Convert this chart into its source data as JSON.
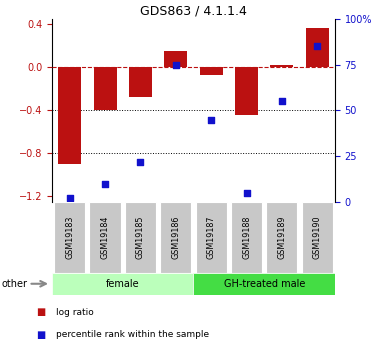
{
  "title": "GDS863 / 4.1.1.4",
  "samples": [
    "GSM19183",
    "GSM19184",
    "GSM19185",
    "GSM19186",
    "GSM19187",
    "GSM19188",
    "GSM19189",
    "GSM19190"
  ],
  "log_ratio": [
    -0.9,
    -0.4,
    -0.28,
    0.15,
    -0.07,
    -0.44,
    0.02,
    0.37
  ],
  "percentile_rank": [
    2,
    10,
    22,
    75,
    45,
    5,
    55,
    85
  ],
  "bar_color": "#bb1111",
  "dot_color": "#1111cc",
  "groups": [
    {
      "label": "female",
      "start": 0,
      "end": 4,
      "color": "#bbffbb"
    },
    {
      "label": "GH-treated male",
      "start": 4,
      "end": 8,
      "color": "#44dd44"
    }
  ],
  "ylim_left": [
    -1.25,
    0.45
  ],
  "ylim_right": [
    0,
    100
  ],
  "yticks_left": [
    -1.2,
    -0.8,
    -0.4,
    0.0,
    0.4
  ],
  "yticks_right": [
    0,
    25,
    50,
    75,
    100
  ],
  "dotted_lines": [
    -0.4,
    -0.8
  ],
  "legend_items": [
    {
      "label": "log ratio",
      "color": "#bb1111"
    },
    {
      "label": "percentile rank within the sample",
      "color": "#1111cc"
    }
  ],
  "other_label": "other",
  "bg_color": "#ffffff",
  "label_fontsize": 7,
  "bar_width": 0.65
}
